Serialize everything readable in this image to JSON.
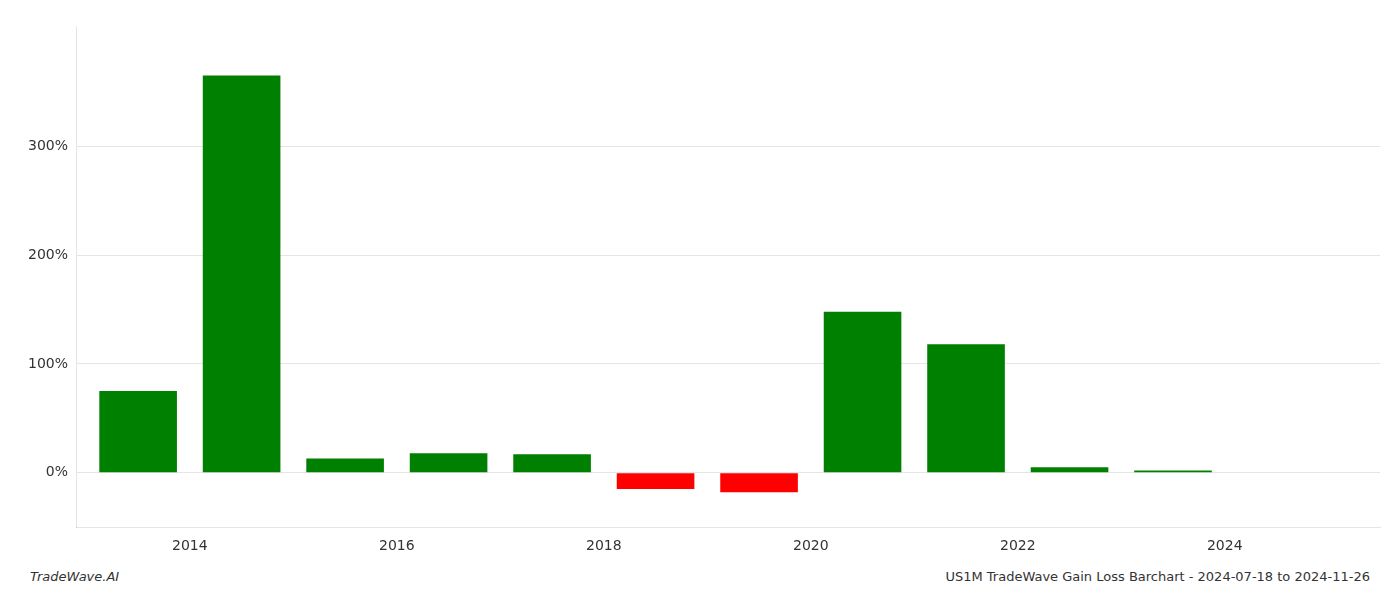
{
  "chart_data": {
    "type": "bar",
    "x": [
      2013,
      2014,
      2015,
      2016,
      2017,
      2018,
      2019,
      2020,
      2021,
      2022,
      2023,
      2024
    ],
    "values": [
      75,
      365,
      13,
      18,
      17,
      -15,
      -18,
      148,
      118,
      5,
      2,
      0
    ],
    "colors": [
      "#008000",
      "#008000",
      "#008000",
      "#008000",
      "#008000",
      "#ff0000",
      "#ff0000",
      "#008000",
      "#008000",
      "#008000",
      "#008000",
      "#008000"
    ],
    "xlim": [
      2012.4,
      2025
    ],
    "xticks": [
      {
        "value": 2013.5,
        "label": "2014"
      },
      {
        "value": 2015.5,
        "label": "2016"
      },
      {
        "value": 2017.5,
        "label": "2018"
      },
      {
        "value": 2019.5,
        "label": "2020"
      },
      {
        "value": 2021.5,
        "label": "2022"
      },
      {
        "value": 2023.5,
        "label": "2024"
      }
    ],
    "ylim": [
      -50,
      410
    ],
    "yticks": [
      {
        "value": 0,
        "label": "0%"
      },
      {
        "value": 100,
        "label": "100%"
      },
      {
        "value": 200,
        "label": "200%"
      },
      {
        "value": 300,
        "label": "300%"
      }
    ],
    "grid": true,
    "annotations": [
      "TradeWave.AI",
      "US1M TradeWave Gain Loss Barchart - 2024-07-18 to 2024-11-26"
    ]
  }
}
